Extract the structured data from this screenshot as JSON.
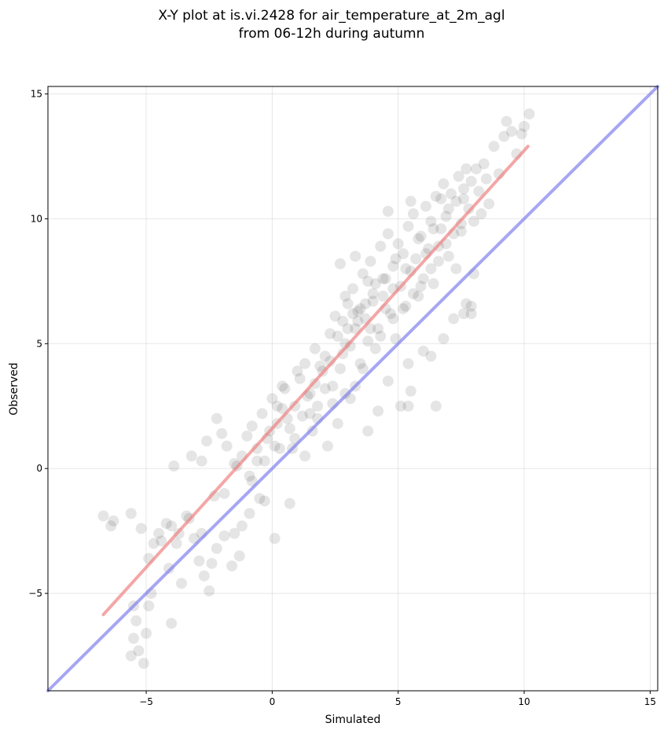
{
  "chart_data": {
    "type": "scatter",
    "title": "X-Y plot at is.vi.2428 for air_temperature_at_2m_agl",
    "subtitle": "from 06-12h during autumn",
    "xlabel": "Simulated",
    "ylabel": "Observed",
    "xlim": [
      -8.9,
      15.3
    ],
    "ylim": [
      -8.9,
      15.3
    ],
    "xticks": [
      -5,
      0,
      5,
      10,
      15
    ],
    "yticks": [
      -5,
      0,
      5,
      10,
      15
    ],
    "xtick_labels": [
      "−5",
      "0",
      "5",
      "10",
      "15"
    ],
    "ytick_labels": [
      "−5",
      "0",
      "5",
      "10",
      "15"
    ],
    "grid": true,
    "point_color": "#000000",
    "point_opacity": 0.1,
    "regression_line": {
      "color": "#f08080",
      "from": [
        -6.7,
        -5.85
      ],
      "to": [
        10.15,
        12.9
      ]
    },
    "identity_line": {
      "color": "#8080f0",
      "from": [
        -8.9,
        -8.9
      ],
      "to": [
        15.3,
        15.3
      ]
    },
    "points": [
      [
        -6.7,
        -1.9
      ],
      [
        -6.3,
        -2.1
      ],
      [
        -6.4,
        -2.3
      ],
      [
        -5.6,
        -1.8
      ],
      [
        -5.2,
        -2.4
      ],
      [
        -5.5,
        -5.5
      ],
      [
        -5.4,
        -6.1
      ],
      [
        -5.5,
        -6.8
      ],
      [
        -5.3,
        -7.3
      ],
      [
        -5.1,
        -7.8
      ],
      [
        -5.6,
        -7.5
      ],
      [
        -5.0,
        -6.6
      ],
      [
        -4.9,
        -5.5
      ],
      [
        -4.8,
        -5.0
      ],
      [
        -4.9,
        -3.6
      ],
      [
        -4.7,
        -3.0
      ],
      [
        -4.5,
        -2.6
      ],
      [
        -4.4,
        -2.9
      ],
      [
        -4.2,
        -2.2
      ],
      [
        -4.0,
        -2.3
      ],
      [
        -4.1,
        -4.0
      ],
      [
        -3.8,
        -3.0
      ],
      [
        -3.6,
        -4.6
      ],
      [
        -3.7,
        -2.6
      ],
      [
        -4.0,
        -6.2
      ],
      [
        -3.3,
        -2.0
      ],
      [
        -3.1,
        -2.8
      ],
      [
        -2.9,
        -3.7
      ],
      [
        -2.7,
        -4.3
      ],
      [
        -2.5,
        -4.9
      ],
      [
        -2.8,
        -2.6
      ],
      [
        -2.4,
        -3.8
      ],
      [
        -2.2,
        -3.2
      ],
      [
        -1.9,
        -2.7
      ],
      [
        -1.6,
        -3.9
      ],
      [
        -1.3,
        -3.5
      ],
      [
        -1.5,
        -2.6
      ],
      [
        -1.2,
        -2.3
      ],
      [
        -0.9,
        -1.8
      ],
      [
        -0.5,
        -1.2
      ],
      [
        -0.3,
        -1.3
      ],
      [
        0.1,
        -2.8
      ],
      [
        0.7,
        -1.4
      ],
      [
        -3.9,
        0.1
      ],
      [
        -3.2,
        0.5
      ],
      [
        -2.8,
        0.3
      ],
      [
        -2.6,
        1.1
      ],
      [
        -2.2,
        2.0
      ],
      [
        -2.0,
        1.4
      ],
      [
        -1.8,
        0.9
      ],
      [
        -1.5,
        0.2
      ],
      [
        -1.2,
        0.5
      ],
      [
        -1.0,
        1.3
      ],
      [
        -0.8,
        1.7
      ],
      [
        -0.6,
        0.8
      ],
      [
        -0.4,
        2.2
      ],
      [
        -0.2,
        1.2
      ],
      [
        0.0,
        2.8
      ],
      [
        0.2,
        1.8
      ],
      [
        0.4,
        2.4
      ],
      [
        0.5,
        3.2
      ],
      [
        0.7,
        1.6
      ],
      [
        0.9,
        2.5
      ],
      [
        1.1,
        3.6
      ],
      [
        1.2,
        2.1
      ],
      [
        1.3,
        4.2
      ],
      [
        1.5,
        3.0
      ],
      [
        1.7,
        4.8
      ],
      [
        1.8,
        2.5
      ],
      [
        2.0,
        3.9
      ],
      [
        2.1,
        4.5
      ],
      [
        2.3,
        5.4
      ],
      [
        2.4,
        3.3
      ],
      [
        2.5,
        6.1
      ],
      [
        2.7,
        4.0
      ],
      [
        2.8,
        5.9
      ],
      [
        2.9,
        3.0
      ],
      [
        3.0,
        6.6
      ],
      [
        3.1,
        4.9
      ],
      [
        3.2,
        7.2
      ],
      [
        3.3,
        5.6
      ],
      [
        3.4,
        6.3
      ],
      [
        3.5,
        4.2
      ],
      [
        3.6,
        7.8
      ],
      [
        3.7,
        6.0
      ],
      [
        3.8,
        5.1
      ],
      [
        3.9,
        8.3
      ],
      [
        4.0,
        6.7
      ],
      [
        4.1,
        7.4
      ],
      [
        4.2,
        5.6
      ],
      [
        4.3,
        8.9
      ],
      [
        4.4,
        6.9
      ],
      [
        4.5,
        7.6
      ],
      [
        4.6,
        9.4
      ],
      [
        4.7,
        6.2
      ],
      [
        4.8,
        8.1
      ],
      [
        4.9,
        5.2
      ],
      [
        5.0,
        9.0
      ],
      [
        5.1,
        7.3
      ],
      [
        5.2,
        8.6
      ],
      [
        5.3,
        6.5
      ],
      [
        5.4,
        9.7
      ],
      [
        5.5,
        7.9
      ],
      [
        5.6,
        10.2
      ],
      [
        5.7,
        8.4
      ],
      [
        5.8,
        6.9
      ],
      [
        5.9,
        9.3
      ],
      [
        6.0,
        7.6
      ],
      [
        6.1,
        10.5
      ],
      [
        6.2,
        8.8
      ],
      [
        6.3,
        9.9
      ],
      [
        6.4,
        7.4
      ],
      [
        6.5,
        10.9
      ],
      [
        6.6,
        8.9
      ],
      [
        6.7,
        9.6
      ],
      [
        6.8,
        11.4
      ],
      [
        6.9,
        10.1
      ],
      [
        7.0,
        8.5
      ],
      [
        7.1,
        11.0
      ],
      [
        7.2,
        9.4
      ],
      [
        7.3,
        10.7
      ],
      [
        7.4,
        11.7
      ],
      [
        7.5,
        9.8
      ],
      [
        7.6,
        10.8
      ],
      [
        7.7,
        12.0
      ],
      [
        7.8,
        10.4
      ],
      [
        7.9,
        11.5
      ],
      [
        8.0,
        9.9
      ],
      [
        8.2,
        11.1
      ],
      [
        8.4,
        12.2
      ],
      [
        8.6,
        10.6
      ],
      [
        8.8,
        12.9
      ],
      [
        9.0,
        11.8
      ],
      [
        9.2,
        13.3
      ],
      [
        9.3,
        13.9
      ],
      [
        9.5,
        13.5
      ],
      [
        9.7,
        12.6
      ],
      [
        9.9,
        13.4
      ],
      [
        10.0,
        13.7
      ],
      [
        10.2,
        14.2
      ],
      [
        5.1,
        2.5
      ],
      [
        5.4,
        2.5
      ],
      [
        5.4,
        4.2
      ],
      [
        5.5,
        3.1
      ],
      [
        6.5,
        2.5
      ],
      [
        6.3,
        4.5
      ],
      [
        6.0,
        4.7
      ],
      [
        6.8,
        5.2
      ],
      [
        7.2,
        6.0
      ],
      [
        7.6,
        6.2
      ],
      [
        7.7,
        6.6
      ],
      [
        7.9,
        6.2
      ],
      [
        8.0,
        7.8
      ],
      [
        7.9,
        6.5
      ],
      [
        4.2,
        2.3
      ],
      [
        4.6,
        3.5
      ],
      [
        3.8,
        1.5
      ],
      [
        3.3,
        3.3
      ],
      [
        2.6,
        1.8
      ],
      [
        2.2,
        0.9
      ],
      [
        1.6,
        1.5
      ],
      [
        1.3,
        0.5
      ],
      [
        0.8,
        0.8
      ],
      [
        0.1,
        0.9
      ],
      [
        -0.8,
        -0.5
      ],
      [
        -1.4,
        0.1
      ],
      [
        -1.9,
        -1.0
      ],
      [
        -2.3,
        -1.1
      ],
      [
        -3.4,
        -1.9
      ],
      [
        2.7,
        8.2
      ],
      [
        3.3,
        8.5
      ],
      [
        4.6,
        10.3
      ],
      [
        5.5,
        10.7
      ],
      [
        3.9,
        5.6
      ],
      [
        2.9,
        5.0
      ],
      [
        1.9,
        4.1
      ],
      [
        1.0,
        3.9
      ],
      [
        0.4,
        3.3
      ],
      [
        0.2,
        2.5
      ],
      [
        4.1,
        4.8
      ],
      [
        4.8,
        6.0
      ],
      [
        5.6,
        7.0
      ],
      [
        6.3,
        8.0
      ],
      [
        6.9,
        9.0
      ],
      [
        7.5,
        9.5
      ],
      [
        8.3,
        10.2
      ],
      [
        3.1,
        2.8
      ],
      [
        2.4,
        2.6
      ],
      [
        1.5,
        2.2
      ],
      [
        3.6,
        4.0
      ],
      [
        4.3,
        5.3
      ],
      [
        5.2,
        6.4
      ],
      [
        5.9,
        7.3
      ],
      [
        6.6,
        8.3
      ],
      [
        7.3,
        8.0
      ],
      [
        2.9,
        6.9
      ],
      [
        3.5,
        6.4
      ],
      [
        3.2,
        6.2
      ],
      [
        3.7,
        6.6
      ],
      [
        3.4,
        5.9
      ],
      [
        2.6,
        5.3
      ],
      [
        4.0,
        7.0
      ],
      [
        4.4,
        7.6
      ],
      [
        4.8,
        7.2
      ],
      [
        1.7,
        3.4
      ],
      [
        2.1,
        3.2
      ],
      [
        0.6,
        2.0
      ],
      [
        -0.1,
        1.5
      ],
      [
        1.4,
        2.9
      ],
      [
        2.3,
        4.3
      ],
      [
        3.8,
        7.5
      ],
      [
        4.9,
        8.4
      ],
      [
        5.8,
        9.2
      ],
      [
        6.4,
        9.6
      ],
      [
        7.0,
        10.4
      ],
      [
        -0.9,
        -0.3
      ],
      [
        -0.3,
        0.3
      ],
      [
        -0.6,
        0.3
      ],
      [
        0.3,
        0.8
      ],
      [
        0.9,
        1.2
      ],
      [
        1.8,
        2.0
      ],
      [
        2.8,
        4.6
      ],
      [
        3.0,
        5.6
      ],
      [
        4.5,
        6.4
      ],
      [
        5.3,
        8.0
      ],
      [
        6.1,
        8.6
      ],
      [
        6.7,
        10.8
      ],
      [
        7.6,
        11.2
      ],
      [
        8.1,
        12.0
      ],
      [
        8.5,
        11.6
      ]
    ]
  }
}
